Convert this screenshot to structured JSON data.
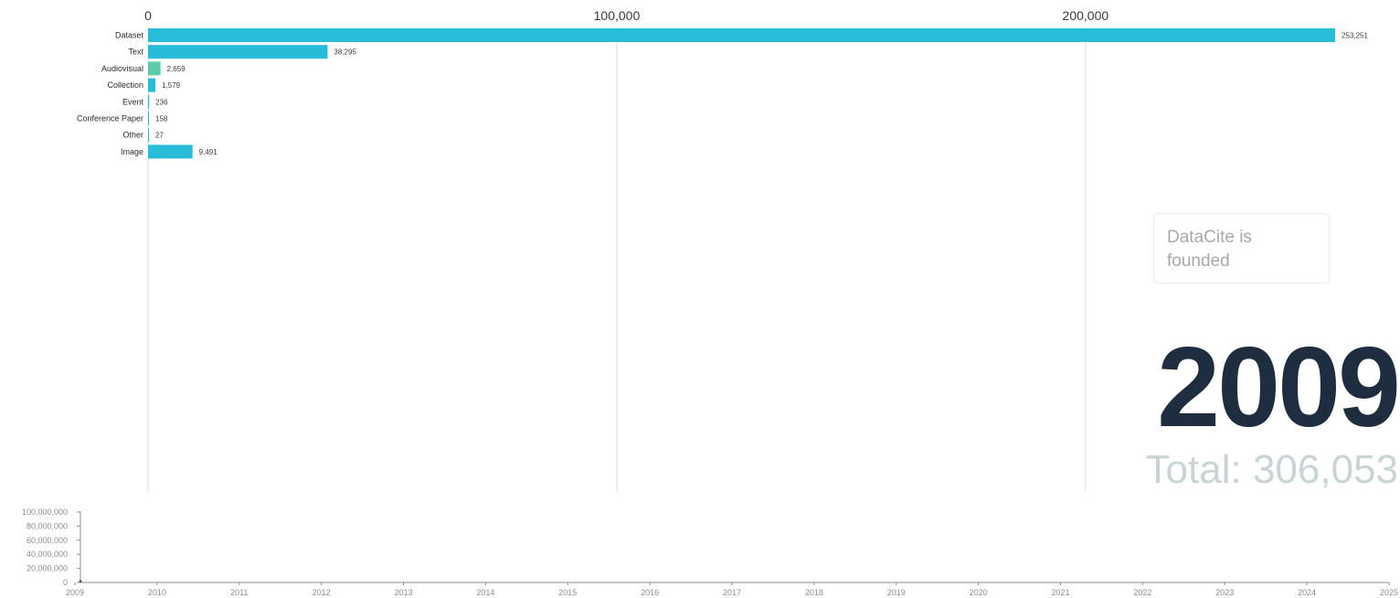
{
  "chart_data": [
    {
      "type": "bar",
      "orientation": "horizontal",
      "categories": [
        "Dataset",
        "Text",
        "Audiovisual",
        "Collection",
        "Event",
        "Conference Paper",
        "Other",
        "Image"
      ],
      "values": [
        253251,
        38295,
        2659,
        1579,
        236,
        158,
        27,
        9491
      ],
      "value_labels": [
        "253,251",
        "38,295",
        "2,659",
        "1,579",
        "236",
        "158",
        "27",
        "9,491"
      ],
      "colors": [
        "#27bcd8",
        "#27bcd8",
        "#5ccba9",
        "#27bcd8",
        "#27bcd8",
        "#27bcd8",
        "#27bcd8",
        "#27bcd8"
      ],
      "x_ticks": [
        0,
        100000,
        200000
      ],
      "x_tick_labels": [
        "0",
        "100,000",
        "200,000"
      ],
      "xlim": [
        0,
        253251
      ],
      "grid": true,
      "axis_position": "top"
    },
    {
      "type": "line",
      "x_ticks": [
        "2009",
        "2010",
        "2011",
        "2012",
        "2013",
        "2014",
        "2015",
        "2016",
        "2017",
        "2018",
        "2019",
        "2020",
        "2021",
        "2022",
        "2023",
        "2024",
        "2025"
      ],
      "y_ticks": [
        "100,000,000",
        "80,000,000",
        "60,000,000",
        "40,000,000",
        "20,000,000",
        "0"
      ],
      "ylim": [
        0,
        100000000
      ],
      "series": [
        {
          "x": [
            "2009"
          ],
          "values": [
            306053
          ]
        }
      ]
    }
  ],
  "annotation": "DataCite is founded",
  "year": "2009",
  "total": "Total: 306,053",
  "colors": {
    "bar": "#27bcd8",
    "bar_alt": "#5ccba9",
    "year": "#1f2d40",
    "total": "#c9d4d6"
  }
}
